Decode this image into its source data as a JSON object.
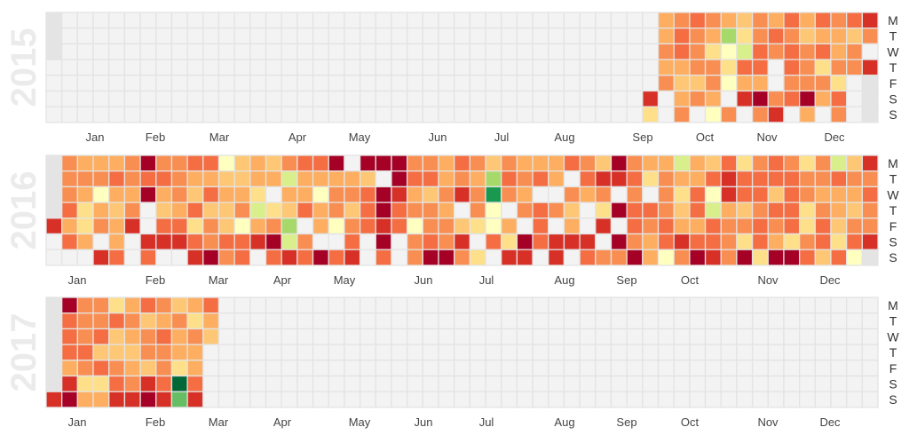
{
  "chart_data": {
    "type": "heatmap",
    "title": "",
    "layout": "calendar",
    "day_labels": [
      "M",
      "T",
      "W",
      "T",
      "F",
      "S",
      "S"
    ],
    "month_labels": [
      "Jan",
      "Feb",
      "Mar",
      "Apr",
      "May",
      "Jun",
      "Jul",
      "Aug",
      "Sep",
      "Oct",
      "Nov",
      "Dec"
    ],
    "color_levels": {
      "a": "#a50026",
      "b": "#d73027",
      "c": "#f46d43",
      "d": "#f98e52",
      "e": "#fdae61",
      "f": "#fdc776",
      "g": "#fee08b",
      "h": "#ffffbf",
      "i": "#d9ef8b",
      "j": "#a6d96a",
      "m": "#66bd63",
      "k": "#1a9850",
      "l": "#006837",
      ".": "#f3f3f3",
      "#": "#e4e4e4"
    },
    "legend_note": "letters a→l map dark red → dark green; '.' = no value; '#' = outside year",
    "years": [
      {
        "year": "2015",
        "rows": [
          "#......... .......... .......... .........e dcdefdecec dcb",
          "#......... .......... .......... .........e cdejgdcdfe efd",
          "#......... .......... .......... .........d cdghicdcdc ed.",
          ".......... .......... .......... .........e eddgcc.cdg ddb",
          ".......... .......... .......... .........d ffdhee.ddd g.#",
          ".......... .......... .......... ........b. ede.badcae c.#",
          ".......... .......... .......... ........g. d.hd.db.e. d.#"
        ]
      },
      {
        "year": "2016",
        "rows": [
          "#deeedaddc chfefdcca. aaaddecdfd eeecdfadee iefcgdcdgd ifb",
          "#dddcdccde effeeieeee f.accedejc dce.cbbcgd eecbccccdd cdd",
          "#deheeaedf ceeg.eehdd cabefdbdkd e..ded.d.d gchbccfcde eec",
          "#cgefd.fec ffdigfcedf cacdde.dh. dcdf.gaccd fciefdccgd efd",
          "begdeb.ccg dfhedj.ehd cbchddfghe .c.e.b.cdc eecddcdcgc fdd",
          ".ce.e.bbbc dccbaid..c .a.dcdb.cg acbbb.adec bccdgcegdc gcb",
          "...bc.c..b adc.cbcacb .c.daadg.b b.b.cddaeh dabdagaacf ch#"
        ]
      },
      {
        "year": "2017",
        "rows": [
          "#addgecdfe c......... .......... .......... .......... ...",
          "#cddcdfedg e......... .......... .......... .......... ...",
          "#cdcfedced f......... .......... .......... .......... ...",
          "#ccfffddee .......... .......... .......... .......... ...",
          "#edcdefdge .......... .......... .......... .......... ...",
          "#bggcdbclc .......... .......... .......... .......... ...",
          "baeebbabmb .......... .......... .......... .......... ..."
        ]
      }
    ]
  }
}
